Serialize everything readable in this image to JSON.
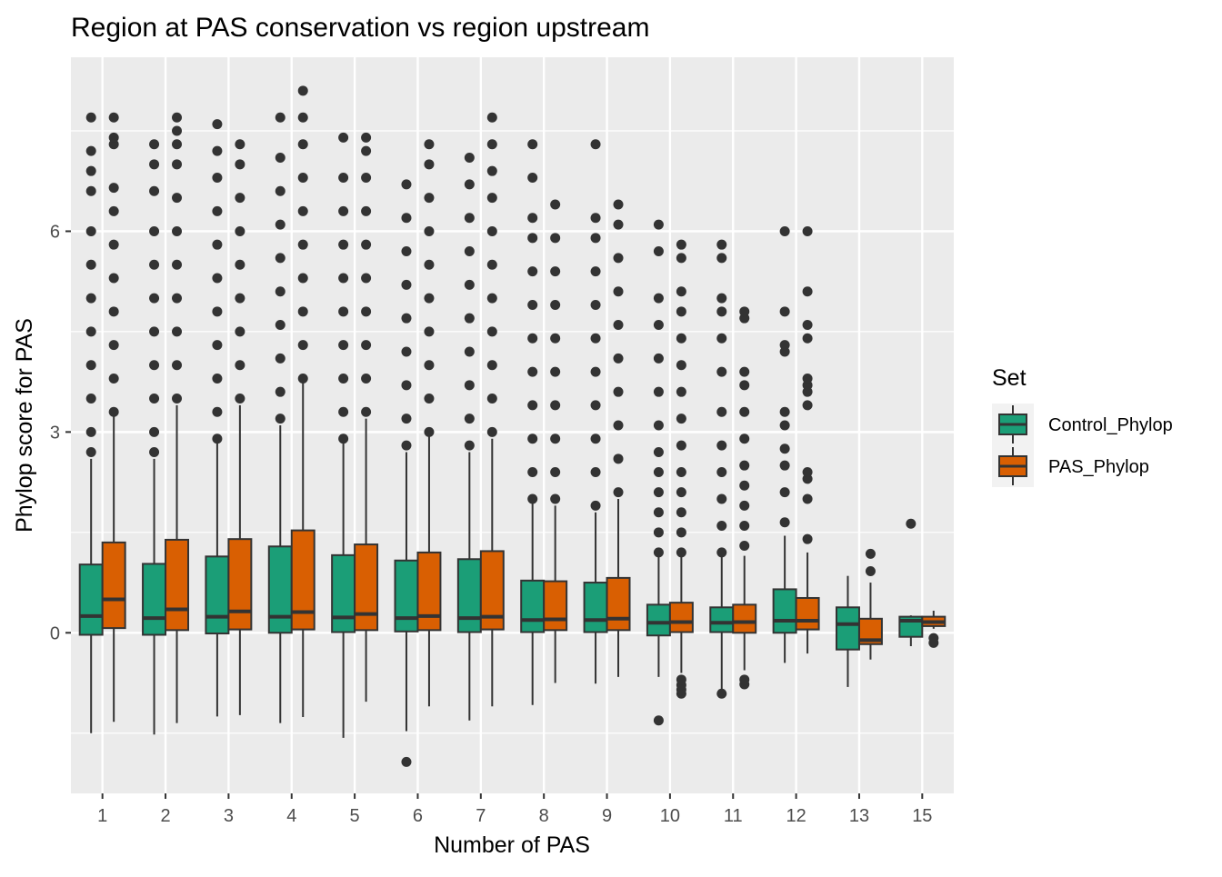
{
  "chart_data": {
    "type": "box",
    "title": "Region at PAS conservation vs region upstream",
    "xlabel": "Number of PAS",
    "ylabel": "Phylop score for PAS",
    "ylim": [
      -2.4,
      8.6
    ],
    "yticks": [
      0,
      3,
      6
    ],
    "grid": true,
    "legend": {
      "title": "Set",
      "position": "right",
      "entries": [
        {
          "name": "Control_Phylop",
          "color": "#1B9E77"
        },
        {
          "name": "PAS_Phylop",
          "color": "#D95F02"
        }
      ]
    },
    "categories": [
      "1",
      "2",
      "3",
      "4",
      "5",
      "6",
      "7",
      "8",
      "9",
      "10",
      "11",
      "12",
      "13",
      "15"
    ],
    "series": [
      {
        "name": "Control_Phylop",
        "color": "#1B9E77",
        "boxes": [
          {
            "lower_whisker": -1.5,
            "q1": -0.03,
            "median": 0.25,
            "q3": 1.02,
            "upper_whisker": 2.6,
            "outliers": [
              2.7,
              3.0,
              3.5,
              4.0,
              4.5,
              5.0,
              5.5,
              6.0,
              6.6,
              6.9,
              7.2,
              7.7
            ]
          },
          {
            "lower_whisker": -1.52,
            "q1": -0.03,
            "median": 0.22,
            "q3": 1.03,
            "upper_whisker": 2.6,
            "outliers": [
              2.7,
              3.0,
              3.5,
              4.0,
              4.5,
              5.0,
              5.5,
              6.0,
              6.6,
              7.0,
              7.3
            ]
          },
          {
            "lower_whisker": -1.25,
            "q1": -0.01,
            "median": 0.24,
            "q3": 1.14,
            "upper_whisker": 2.85,
            "outliers": [
              2.9,
              3.3,
              3.8,
              4.3,
              4.8,
              5.3,
              5.8,
              6.3,
              6.8,
              7.2,
              7.6
            ]
          },
          {
            "lower_whisker": -1.35,
            "q1": 0.0,
            "median": 0.24,
            "q3": 1.29,
            "upper_whisker": 3.1,
            "outliers": [
              3.2,
              3.6,
              4.1,
              4.6,
              5.1,
              5.6,
              6.1,
              6.6,
              7.1,
              7.7
            ]
          },
          {
            "lower_whisker": -1.57,
            "q1": 0.01,
            "median": 0.23,
            "q3": 1.16,
            "upper_whisker": 2.85,
            "outliers": [
              2.9,
              3.3,
              3.8,
              4.3,
              4.8,
              5.3,
              5.8,
              6.3,
              6.8,
              7.4
            ]
          },
          {
            "lower_whisker": -1.47,
            "q1": 0.02,
            "median": 0.22,
            "q3": 1.08,
            "upper_whisker": 2.7,
            "outliers": [
              -1.93,
              2.8,
              3.2,
              3.7,
              4.2,
              4.7,
              5.2,
              5.7,
              6.2,
              6.7
            ]
          },
          {
            "lower_whisker": -1.31,
            "q1": 0.01,
            "median": 0.22,
            "q3": 1.1,
            "upper_whisker": 2.7,
            "outliers": [
              2.8,
              3.2,
              3.7,
              4.2,
              4.7,
              5.2,
              5.7,
              6.2,
              6.7,
              7.1
            ]
          },
          {
            "lower_whisker": -1.08,
            "q1": 0.01,
            "median": 0.19,
            "q3": 0.78,
            "upper_whisker": 1.95,
            "outliers": [
              2.0,
              2.4,
              2.9,
              3.4,
              3.9,
              4.4,
              4.9,
              5.4,
              5.9,
              6.2,
              6.8,
              7.3
            ]
          },
          {
            "lower_whisker": -0.76,
            "q1": 0.01,
            "median": 0.19,
            "q3": 0.75,
            "upper_whisker": 1.8,
            "outliers": [
              1.9,
              2.4,
              2.9,
              3.4,
              3.9,
              4.4,
              4.9,
              5.4,
              5.9,
              6.2,
              7.3
            ]
          },
          {
            "lower_whisker": -0.66,
            "q1": -0.04,
            "median": 0.15,
            "q3": 0.42,
            "upper_whisker": 1.2,
            "outliers": [
              -1.31,
              1.2,
              1.5,
              1.8,
              2.1,
              2.4,
              2.7,
              3.1,
              3.6,
              4.1,
              4.6,
              5.0,
              5.7,
              6.1
            ]
          },
          {
            "lower_whisker": -0.93,
            "q1": 0.01,
            "median": 0.15,
            "q3": 0.38,
            "upper_whisker": 1.2,
            "outliers": [
              -0.91,
              1.2,
              1.6,
              2.0,
              2.4,
              2.8,
              3.3,
              3.9,
              4.4,
              4.8,
              5.0,
              5.6,
              5.8
            ]
          },
          {
            "lower_whisker": -0.45,
            "q1": 0.0,
            "median": 0.18,
            "q3": 0.65,
            "upper_whisker": 1.45,
            "outliers": [
              1.65,
              2.1,
              2.5,
              2.75,
              3.1,
              3.3,
              4.2,
              4.3,
              4.8,
              6.0
            ]
          },
          {
            "lower_whisker": -0.81,
            "q1": -0.25,
            "median": 0.13,
            "q3": 0.38,
            "upper_whisker": 0.85,
            "outliers": []
          },
          {
            "lower_whisker": -0.2,
            "q1": -0.06,
            "median": 0.18,
            "q3": 0.24,
            "upper_whisker": 0.26,
            "outliers": [
              1.63
            ]
          }
        ]
      },
      {
        "name": "PAS_Phylop",
        "color": "#D95F02",
        "boxes": [
          {
            "lower_whisker": -1.33,
            "q1": 0.07,
            "median": 0.5,
            "q3": 1.35,
            "upper_whisker": 3.25,
            "outliers": [
              3.3,
              3.8,
              4.3,
              4.8,
              5.3,
              5.8,
              6.3,
              6.65,
              7.3,
              7.4,
              7.7
            ]
          },
          {
            "lower_whisker": -1.35,
            "q1": 0.04,
            "median": 0.35,
            "q3": 1.39,
            "upper_whisker": 3.4,
            "outliers": [
              3.5,
              4.0,
              4.5,
              5.0,
              5.5,
              6.0,
              6.5,
              7.0,
              7.3,
              7.5,
              7.7
            ]
          },
          {
            "lower_whisker": -1.23,
            "q1": 0.05,
            "median": 0.32,
            "q3": 1.4,
            "upper_whisker": 3.4,
            "outliers": [
              3.5,
              4.0,
              4.5,
              5.0,
              5.5,
              6.0,
              6.5,
              7.0,
              7.3
            ]
          },
          {
            "lower_whisker": -1.26,
            "q1": 0.05,
            "median": 0.31,
            "q3": 1.53,
            "upper_whisker": 3.75,
            "outliers": [
              3.8,
              4.3,
              4.8,
              5.3,
              5.8,
              6.3,
              6.8,
              7.3,
              7.7,
              8.1
            ]
          },
          {
            "lower_whisker": -1.03,
            "q1": 0.04,
            "median": 0.28,
            "q3": 1.32,
            "upper_whisker": 3.2,
            "outliers": [
              3.3,
              3.8,
              4.3,
              4.8,
              5.3,
              5.8,
              6.3,
              6.8,
              7.2,
              7.4
            ]
          },
          {
            "lower_whisker": -1.1,
            "q1": 0.04,
            "median": 0.25,
            "q3": 1.2,
            "upper_whisker": 2.95,
            "outliers": [
              3.0,
              3.5,
              4.0,
              4.5,
              5.0,
              5.5,
              6.0,
              6.5,
              7.0,
              7.3
            ]
          },
          {
            "lower_whisker": -1.1,
            "q1": 0.05,
            "median": 0.24,
            "q3": 1.22,
            "upper_whisker": 2.9,
            "outliers": [
              3.0,
              3.5,
              4.0,
              4.5,
              5.0,
              5.5,
              6.0,
              6.5,
              6.9,
              7.3,
              7.7
            ]
          },
          {
            "lower_whisker": -0.75,
            "q1": 0.04,
            "median": 0.2,
            "q3": 0.77,
            "upper_whisker": 1.9,
            "outliers": [
              2.0,
              2.4,
              2.9,
              3.4,
              3.9,
              4.4,
              4.9,
              5.4,
              5.9,
              6.4
            ]
          },
          {
            "lower_whisker": -0.66,
            "q1": 0.04,
            "median": 0.21,
            "q3": 0.82,
            "upper_whisker": 2.0,
            "outliers": [
              2.1,
              2.6,
              3.1,
              3.6,
              4.1,
              4.6,
              5.1,
              5.6,
              6.1,
              6.4
            ]
          },
          {
            "lower_whisker": -0.6,
            "q1": 0.01,
            "median": 0.16,
            "q3": 0.45,
            "upper_whisker": 1.2,
            "outliers": [
              -0.91,
              -0.85,
              -0.78,
              -0.7,
              1.2,
              1.5,
              1.8,
              2.1,
              2.4,
              2.8,
              3.2,
              3.6,
              4.0,
              4.4,
              4.8,
              5.1,
              5.6,
              5.8
            ]
          },
          {
            "lower_whisker": -0.56,
            "q1": 0.0,
            "median": 0.16,
            "q3": 0.42,
            "upper_whisker": 1.15,
            "outliers": [
              -0.77,
              -0.7,
              1.3,
              1.6,
              1.9,
              2.2,
              2.5,
              2.9,
              3.3,
              3.7,
              3.9,
              4.7,
              4.8
            ]
          },
          {
            "lower_whisker": -0.31,
            "q1": 0.05,
            "median": 0.18,
            "q3": 0.52,
            "upper_whisker": 1.2,
            "outliers": [
              1.4,
              2.0,
              2.3,
              2.4,
              3.4,
              3.6,
              3.7,
              3.8,
              4.4,
              4.6,
              5.1,
              6.0
            ]
          },
          {
            "lower_whisker": -0.4,
            "q1": -0.17,
            "median": -0.11,
            "q3": 0.21,
            "upper_whisker": 0.75,
            "outliers": [
              0.92,
              1.18
            ]
          },
          {
            "lower_whisker": 0.06,
            "q1": 0.1,
            "median": 0.16,
            "q3": 0.24,
            "upper_whisker": 0.33,
            "outliers": [
              -0.15,
              -0.08
            ]
          }
        ]
      }
    ]
  }
}
